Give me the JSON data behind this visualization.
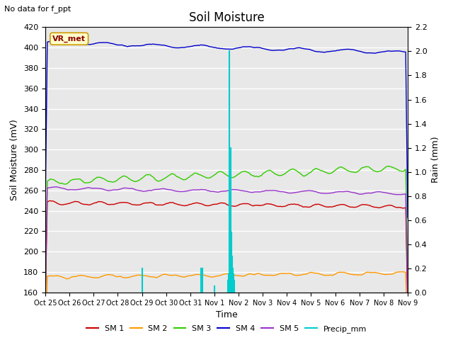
{
  "title": "Soil Moisture",
  "annotation": "No data for f_ppt",
  "ylabel_left": "Soil Moisture (mV)",
  "ylabel_right": "Rain (mm)",
  "xlabel": "Time",
  "ylim_left": [
    160,
    420
  ],
  "ylim_right": [
    0.0,
    2.2
  ],
  "yticks_left": [
    160,
    180,
    200,
    220,
    240,
    260,
    280,
    300,
    320,
    340,
    360,
    380,
    400,
    420
  ],
  "yticks_right": [
    0.0,
    0.2,
    0.4,
    0.6,
    0.8,
    1.0,
    1.2,
    1.4,
    1.6,
    1.8,
    2.0,
    2.2
  ],
  "xtick_labels": [
    "Oct 25",
    "Oct 26",
    "Oct 27",
    "Oct 28",
    "Oct 29",
    "Oct 30",
    "Oct 31",
    "Nov 1",
    "Nov 2",
    "Nov 3",
    "Nov 4",
    "Nov 5",
    "Nov 6",
    "Nov 7",
    "Nov 8",
    "Nov 9"
  ],
  "legend_labels": [
    "SM 1",
    "SM 2",
    "SM 3",
    "SM 4",
    "SM 5",
    "Precip_mm"
  ],
  "legend_colors": [
    "#cc0000",
    "#ff9900",
    "#33cc00",
    "#0000cc",
    "#9933cc",
    "#00cccc"
  ],
  "sm1_base": 248,
  "sm2_base": 175,
  "sm3_base": 268,
  "sm4_base": 405,
  "sm5_base": 262,
  "vr_met_label": "VR_met",
  "fig_bg_color": "#ffffff",
  "plot_bg_color": "#e8e8e8",
  "grid_color": "#ffffff",
  "precip_spikes": [
    {
      "day": 4.0,
      "val": 0.2
    },
    {
      "day": 6.45,
      "val": 0.2
    },
    {
      "day": 6.5,
      "val": 0.2
    },
    {
      "day": 7.0,
      "val": 0.05
    },
    {
      "day": 7.55,
      "val": 0.1
    },
    {
      "day": 7.6,
      "val": 0.15
    },
    {
      "day": 7.63,
      "val": 2.0
    },
    {
      "day": 7.67,
      "val": 1.2
    },
    {
      "day": 7.7,
      "val": 0.5
    },
    {
      "day": 7.73,
      "val": 0.3
    },
    {
      "day": 7.76,
      "val": 0.2
    },
    {
      "day": 7.8,
      "val": 0.15
    },
    {
      "day": 7.83,
      "val": 0.1
    }
  ]
}
